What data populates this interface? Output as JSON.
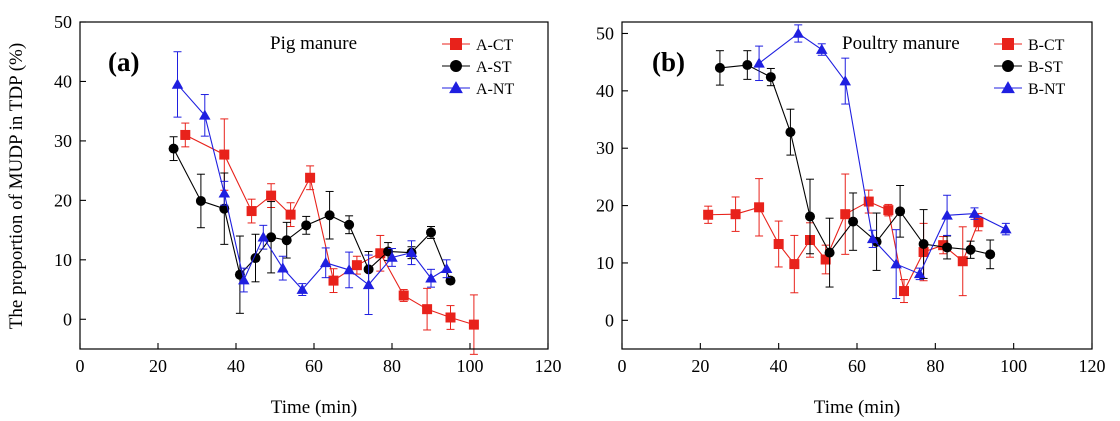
{
  "chart_data": [
    {
      "type": "scatter",
      "panel_label": "(a)",
      "title": "Pig manure",
      "xlabel": "Time (min)",
      "ylabel": "The proportion of MUDP in TDP (%)",
      "xlim": [
        0,
        120
      ],
      "ylim": [
        -5,
        50
      ],
      "xticks": [
        0,
        20,
        40,
        60,
        80,
        100,
        120
      ],
      "yticks": [
        0,
        10,
        20,
        30,
        40,
        50
      ],
      "grid": false,
      "legend_position": "top-right",
      "series": [
        {
          "name": "A-CT",
          "color": "#e8221b",
          "marker": "square",
          "x": [
            27,
            37,
            44,
            49,
            54,
            59,
            65,
            71,
            77,
            83,
            89,
            95,
            101
          ],
          "y": [
            31,
            27.7,
            18.2,
            20.8,
            17.6,
            23.8,
            6.5,
            9.1,
            11.1,
            4.0,
            1.7,
            0.3,
            -0.9
          ],
          "err": [
            2,
            6,
            2,
            2,
            2,
            2,
            2,
            1.5,
            3,
            1,
            3.5,
            2,
            5
          ]
        },
        {
          "name": "A-ST",
          "color": "#000000",
          "marker": "circle",
          "x": [
            24,
            31,
            37,
            41,
            45,
            49,
            53,
            58,
            64,
            69,
            74,
            79,
            85,
            90,
            95
          ],
          "y": [
            28.7,
            19.9,
            18.6,
            7.5,
            10.3,
            13.8,
            13.3,
            15.8,
            17.5,
            15.9,
            8.4,
            11.4,
            11.2,
            14.6,
            6.5
          ],
          "err": [
            2,
            4.5,
            6,
            6.5,
            4,
            6,
            3,
            1.5,
            4,
            1.5,
            3,
            1.5,
            1,
            1,
            0.5
          ]
        },
        {
          "name": "A-NT",
          "color": "#1f1fe0",
          "marker": "triangle",
          "x": [
            25,
            32,
            37,
            42,
            47,
            52,
            57,
            63,
            69,
            74,
            80,
            85,
            90,
            94
          ],
          "y": [
            39.5,
            34.3,
            21.2,
            6.6,
            13.8,
            8.6,
            5.0,
            9.5,
            8.3,
            5.8,
            10.4,
            11.2,
            6.9,
            8.5
          ],
          "err": [
            5.5,
            3.5,
            2,
            2,
            2,
            2,
            1,
            2.5,
            3,
            5,
            1.5,
            2,
            1.5,
            1.5
          ]
        }
      ]
    },
    {
      "type": "scatter",
      "panel_label": "(b)",
      "title": "Poultry manure",
      "xlabel": "Time (min)",
      "ylabel": "",
      "xlim": [
        0,
        120
      ],
      "ylim": [
        -5,
        52
      ],
      "xticks": [
        0,
        20,
        40,
        60,
        80,
        100,
        120
      ],
      "yticks": [
        0,
        10,
        20,
        30,
        40,
        50
      ],
      "grid": false,
      "legend_position": "top-right",
      "series": [
        {
          "name": "B-CT",
          "color": "#e8221b",
          "marker": "square",
          "x": [
            22,
            29,
            35,
            40,
            44,
            48,
            52,
            57,
            63,
            68,
            72,
            77,
            82,
            87,
            91
          ],
          "y": [
            18.4,
            18.5,
            19.7,
            13.3,
            9.8,
            14.0,
            10.6,
            18.5,
            20.7,
            19.2,
            5.1,
            11.9,
            13.1,
            10.3,
            17.1
          ],
          "err": [
            1.5,
            3,
            5,
            4,
            5,
            3,
            2.5,
            7,
            2,
            1,
            2,
            5,
            1.5,
            6,
            1.5
          ]
        },
        {
          "name": "B-ST",
          "color": "#000000",
          "marker": "circle",
          "x": [
            25,
            32,
            38,
            43,
            48,
            53,
            59,
            65,
            71,
            77,
            83,
            89,
            94
          ],
          "y": [
            44.0,
            44.5,
            42.4,
            32.8,
            18.1,
            11.8,
            17.2,
            13.7,
            19.0,
            13.3,
            12.7,
            12.3,
            11.5
          ],
          "err": [
            3,
            2.5,
            1.5,
            4,
            6.5,
            6,
            5,
            5,
            4.5,
            6,
            2,
            1.5,
            2.5
          ]
        },
        {
          "name": "B-NT",
          "color": "#1f1fe0",
          "marker": "triangle",
          "x": [
            35,
            45,
            51,
            57,
            64,
            70,
            76,
            83,
            90,
            98
          ],
          "y": [
            44.8,
            50.0,
            47.2,
            41.7,
            14.2,
            9.8,
            8.1,
            18.3,
            18.6,
            15.9
          ],
          "err": [
            3,
            1.5,
            1,
            4,
            1.5,
            6,
            1,
            3.5,
            1,
            1
          ]
        }
      ]
    }
  ]
}
